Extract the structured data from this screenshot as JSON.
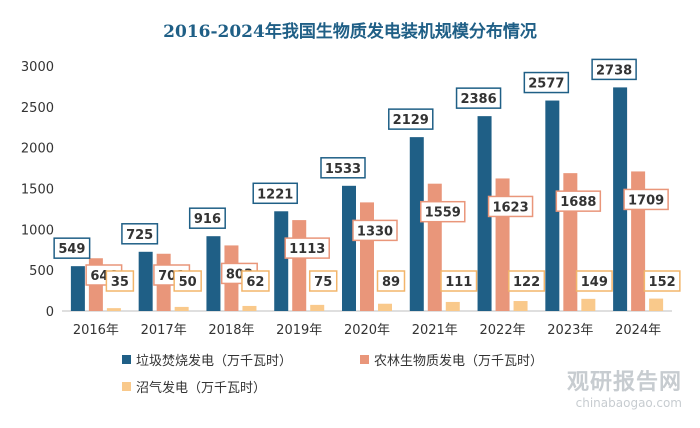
{
  "chart_data": {
    "type": "bar",
    "title": "2016-2024年我国生物质发电装机规模分布情况",
    "categories": [
      "2016年",
      "2017年",
      "2018年",
      "2019年",
      "2020年",
      "2021年",
      "2022年",
      "2023年",
      "2024年"
    ],
    "series": [
      {
        "name": "垃圾焚烧发电（万千瓦时）",
        "color": "#1f5f86",
        "values": [
          549,
          725,
          916,
          1221,
          1533,
          2129,
          2386,
          2577,
          2738
        ]
      },
      {
        "name": "农林生物质发电（万千瓦时）",
        "color": "#e9967a",
        "values": [
          646,
          701,
          803,
          1113,
          1330,
          1559,
          1623,
          1688,
          1709
        ]
      },
      {
        "name": "沼气发电（万千瓦时）",
        "color": "#f9c98b",
        "values": [
          35,
          50,
          62,
          75,
          89,
          111,
          122,
          149,
          152
        ]
      }
    ],
    "ylim": [
      0,
      3000
    ],
    "yticks": [
      0,
      500,
      1000,
      1500,
      2000,
      2500,
      3000
    ],
    "grid": false,
    "legend_position": "bottom"
  },
  "watermark": {
    "main": "观研报告网",
    "sub": "chinabaogao.com"
  }
}
